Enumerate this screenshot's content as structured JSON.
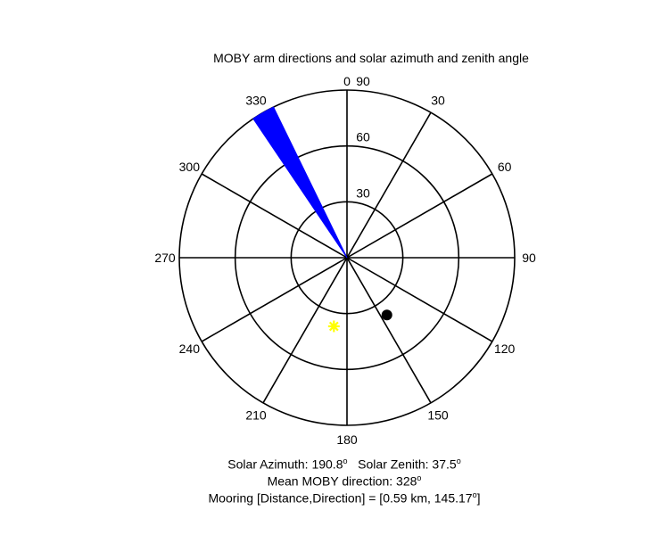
{
  "chart_data": {
    "type": "polar",
    "title": "MOBY arm directions and solar azimuth and zenith angle",
    "angle_ticks": [
      0,
      30,
      60,
      90,
      120,
      150,
      180,
      210,
      240,
      270,
      300,
      330
    ],
    "radial_ticks": [
      "30",
      "60",
      "90"
    ],
    "rmax": 90,
    "arm_sector": {
      "theta_start": 326,
      "theta_end": 334,
      "r": 90,
      "color": "#0000ff"
    },
    "sun_marker": {
      "azimuth": 190.8,
      "zenith": 37.5,
      "color": "#ffff00"
    },
    "mooring_marker": {
      "azimuth": 145.17,
      "r": 37.5,
      "color": "#000000"
    }
  },
  "captions": {
    "line1_a": "Solar Azimuth: 190.8",
    "line1_b": "   Solar Zenith: 37.5",
    "line2": "Mean MOBY direction: 328",
    "line3_a": "Mooring [Distance,Direction] = [0.59 km, 145.17",
    "line3_b": "]",
    "degree_mark": "o"
  }
}
